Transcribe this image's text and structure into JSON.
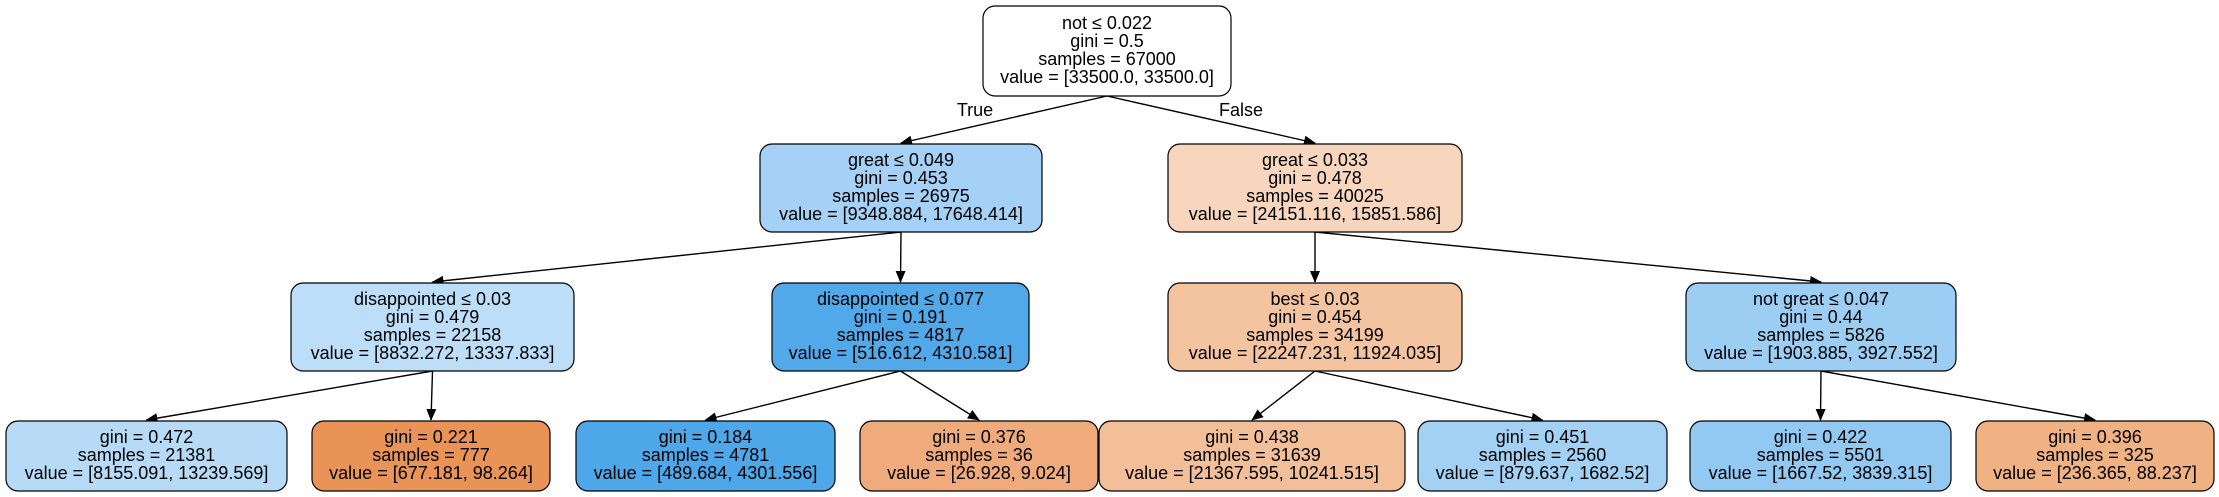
{
  "edge_labels": {
    "true_label": "True",
    "false_label": "False"
  },
  "nodes": [
    {
      "id": "n0",
      "fill": "#ffffff",
      "lines": [
        "not ≤ 0.022",
        "gini = 0.5",
        "samples = 67000",
        "value = [33500.0, 33500.0]"
      ]
    },
    {
      "id": "n1",
      "fill": "#a4d1f5",
      "lines": [
        "great ≤ 0.049",
        "gini = 0.453",
        "samples = 26975",
        "value = [9348.884, 17648.414]"
      ]
    },
    {
      "id": "n2",
      "fill": "#f7d6bd",
      "lines": [
        "great ≤ 0.033",
        "gini = 0.478",
        "samples = 40025",
        "value = [24151.116, 15851.586]"
      ]
    },
    {
      "id": "n3",
      "fill": "#bcdef8",
      "lines": [
        "disappointed ≤ 0.03",
        "gini = 0.479",
        "samples = 22158",
        "value = [8832.272, 13337.833]"
      ]
    },
    {
      "id": "n4",
      "fill": "#52a9ea",
      "lines": [
        "disappointed ≤ 0.077",
        "gini = 0.191",
        "samples = 4817",
        "value = [516.612, 4310.581]"
      ]
    },
    {
      "id": "n5",
      "fill": "#f4c39f",
      "lines": [
        "best ≤ 0.03",
        "gini = 0.454",
        "samples = 34199",
        "value = [22247.231, 11924.035]"
      ]
    },
    {
      "id": "n6",
      "fill": "#9ccdf3",
      "lines": [
        "not great ≤ 0.047",
        "gini = 0.44",
        "samples = 5826",
        "value = [1903.885, 3927.552]"
      ]
    },
    {
      "id": "n7",
      "fill": "#b7dbf7",
      "lines": [
        "gini = 0.472",
        "samples = 21381",
        "value = [8155.091, 13239.569]"
      ]
    },
    {
      "id": "n8",
      "fill": "#e99356",
      "lines": [
        "gini = 0.221",
        "samples = 777",
        "value = [677.181, 98.264]"
      ]
    },
    {
      "id": "n9",
      "fill": "#4ea7e9",
      "lines": [
        "gini = 0.184",
        "samples = 4781",
        "value = [489.684, 4301.556]"
      ]
    },
    {
      "id": "n10",
      "fill": "#efab7c",
      "lines": [
        "gini = 0.376",
        "samples = 36",
        "value = [26.928, 9.024]"
      ]
    },
    {
      "id": "n11",
      "fill": "#f3bf99",
      "lines": [
        "gini = 0.438",
        "samples = 31639",
        "value = [21367.595, 10241.515]"
      ]
    },
    {
      "id": "n12",
      "fill": "#a2d1f4",
      "lines": [
        "gini = 0.451",
        "samples = 2560",
        "value = [879.637, 1682.52]"
      ]
    },
    {
      "id": "n13",
      "fill": "#92c9f2",
      "lines": [
        "gini = 0.422",
        "samples = 5501",
        "value = [1667.52, 3839.315]"
      ]
    },
    {
      "id": "n14",
      "fill": "#f0b183",
      "lines": [
        "gini = 0.396",
        "samples = 325",
        "value = [236.365, 88.237]"
      ]
    }
  ]
}
